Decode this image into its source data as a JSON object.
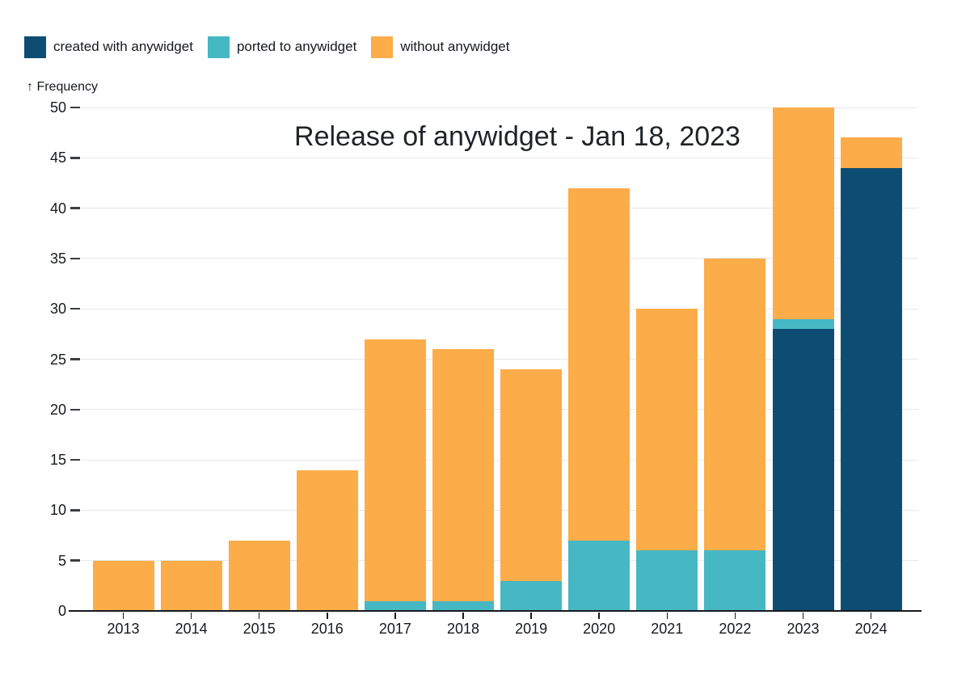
{
  "chart_data": {
    "type": "bar",
    "stacked": true,
    "title": "Release of anywidget - Jan 18, 2023",
    "y_axis_label": "↑ Frequency",
    "categories": [
      "2013",
      "2014",
      "2015",
      "2016",
      "2017",
      "2018",
      "2019",
      "2020",
      "2021",
      "2022",
      "2023",
      "2024"
    ],
    "series": [
      {
        "name": "created with anywidget",
        "color": "#0D4D73",
        "values": [
          0,
          0,
          0,
          0,
          0,
          0,
          0,
          0,
          0,
          0,
          28,
          44
        ]
      },
      {
        "name": "ported to anywidget",
        "color": "#46B8C4",
        "values": [
          0,
          0,
          0,
          0,
          1,
          1,
          3,
          7,
          6,
          6,
          1,
          0
        ]
      },
      {
        "name": "without anywidget",
        "color": "#FCAC49",
        "values": [
          5,
          5,
          7,
          14,
          26,
          25,
          21,
          35,
          24,
          29,
          21,
          3
        ]
      }
    ],
    "totals": [
      5,
      5,
      7,
      14,
      27,
      26,
      24,
      42,
      30,
      35,
      50,
      47
    ],
    "y_ticks": [
      0,
      5,
      10,
      15,
      20,
      25,
      30,
      35,
      40,
      45,
      50
    ],
    "ylim": [
      0,
      50
    ],
    "grid": true,
    "legend_position": "top-left"
  }
}
